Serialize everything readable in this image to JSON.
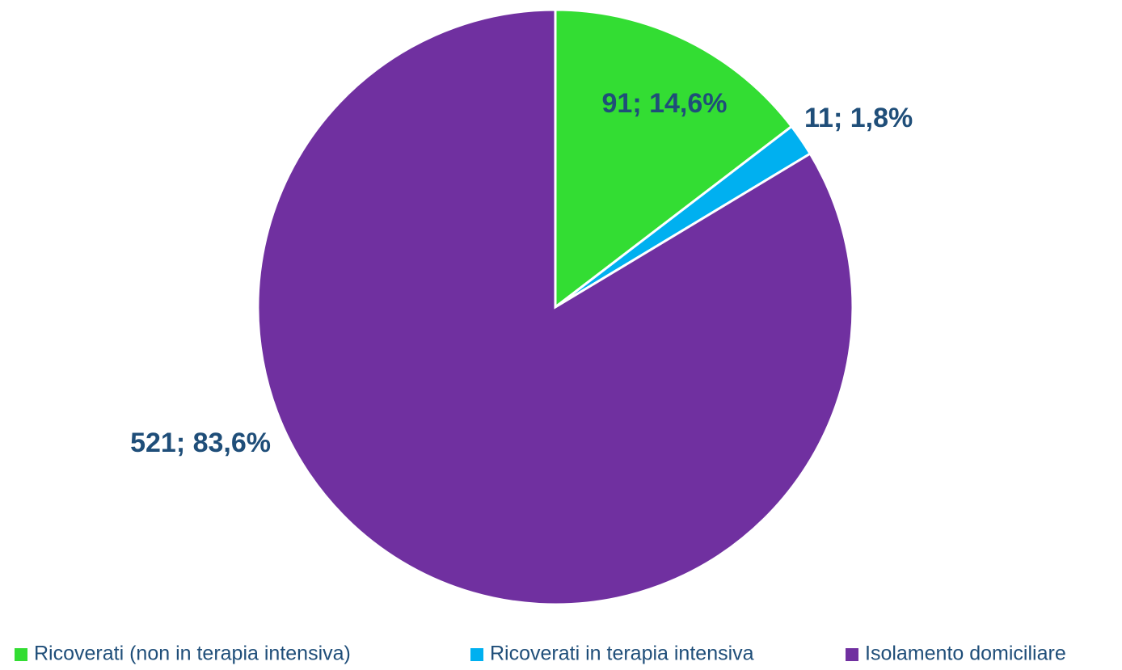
{
  "chart_data": {
    "type": "pie",
    "categories": [
      "Ricoverati (non in terapia intensiva)",
      "Ricoverati in terapia intensiva",
      "Isolamento domiciliare"
    ],
    "values": [
      91,
      11,
      521
    ],
    "value_labels": [
      "91; 14,6%",
      "11; 1,8%",
      "521; 83,6%"
    ],
    "colors": [
      "#33dd33",
      "#00b0f0",
      "#7030a0"
    ],
    "legend": "bottom"
  }
}
